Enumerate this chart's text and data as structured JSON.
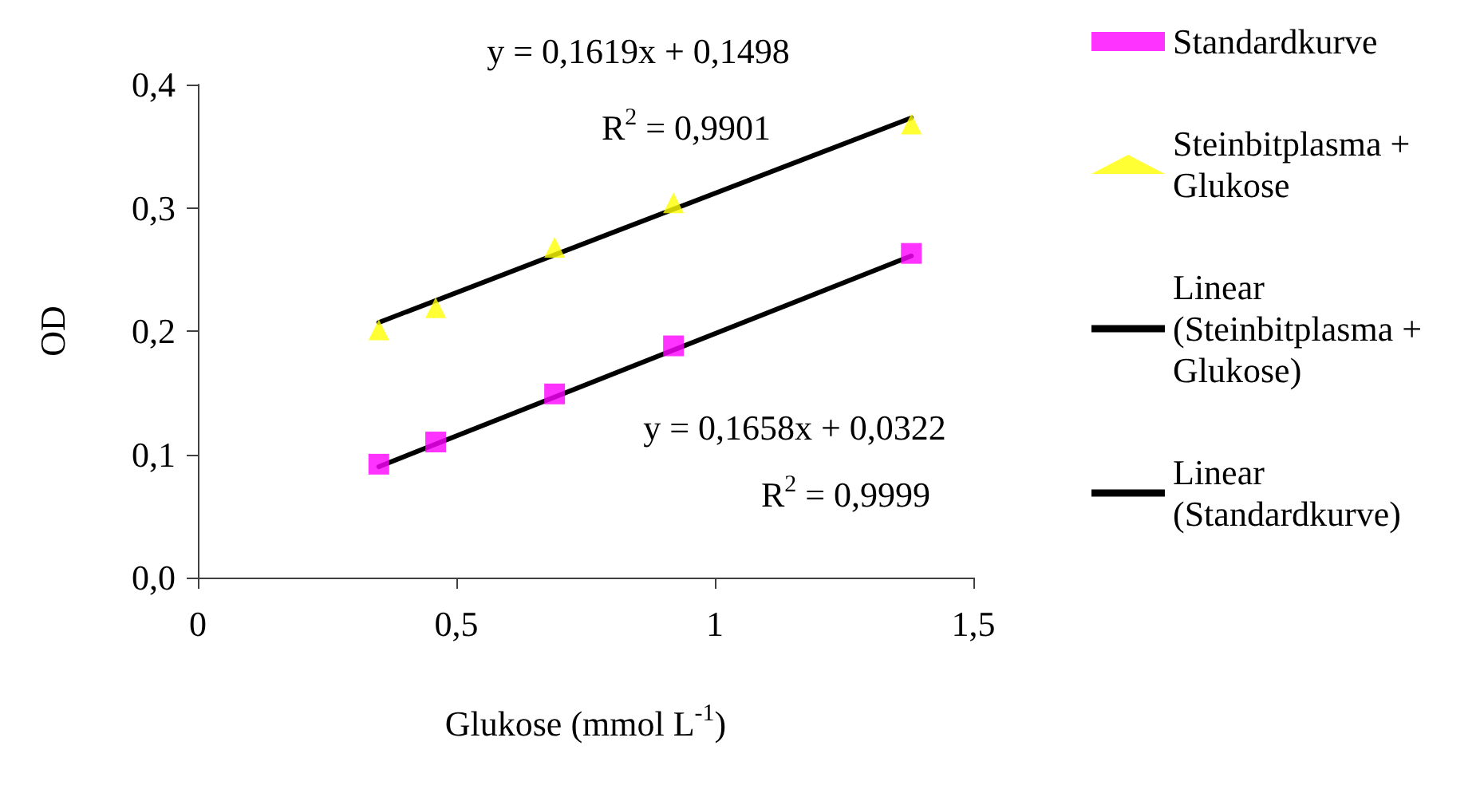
{
  "chart_data": {
    "type": "scatter",
    "xlabel": "Glukose (mmol L$^{-1}$)",
    "ylabel": "OD",
    "xlim": [
      0,
      1.5
    ],
    "xticks": [
      0,
      {
        "value": 0.5,
        "label": "0,5"
      },
      1,
      {
        "value": 1.5,
        "label": "1,5"
      }
    ],
    "ylim": [
      0,
      0.4
    ],
    "yticks": [
      {
        "value": 0,
        "label": "0,0"
      },
      {
        "value": 0.1,
        "label": "0,1"
      },
      {
        "value": 0.2,
        "label": "0,2"
      },
      {
        "value": 0.3,
        "label": "0,3"
      },
      {
        "value": 0.4,
        "label": "0,4"
      }
    ],
    "grid": false,
    "legend": "right",
    "series": [
      {
        "name": "Standardkurve",
        "marker": "square",
        "color": "#ff00ff",
        "x": [
          0.35,
          0.46,
          0.69,
          0.92,
          1.38
        ],
        "values": [
          0.092,
          0.11,
          0.149,
          0.188,
          0.263
        ]
      },
      {
        "name": "Steinbitplasma + Glukose",
        "marker": "triangle",
        "color": "#ffff00",
        "x": [
          0.35,
          0.46,
          0.69,
          0.92,
          1.38
        ],
        "values": [
          0.201,
          0.219,
          0.268,
          0.304,
          0.368
        ]
      },
      {
        "name": "Linear (Steinbitplasma + Glukose)",
        "type": "line",
        "marker": "none",
        "line_style": "solid",
        "color": "#000000",
        "x": [
          0.35,
          1.38
        ],
        "values": [
          0.207,
          0.373
        ]
      },
      {
        "name": "Linear (Standardkurve)",
        "type": "line",
        "marker": "none",
        "line_style": "solid",
        "color": "#000000",
        "x": [
          0.35,
          1.38
        ],
        "values": [
          0.09,
          0.261
        ]
      }
    ],
    "annotations": [
      "y = 0,1619x + 0,1498",
      "R$^{2}$ = 0,9901",
      "y = 0,1658x + 0,0322",
      "R$^{2}$ = 0,9999"
    ]
  }
}
